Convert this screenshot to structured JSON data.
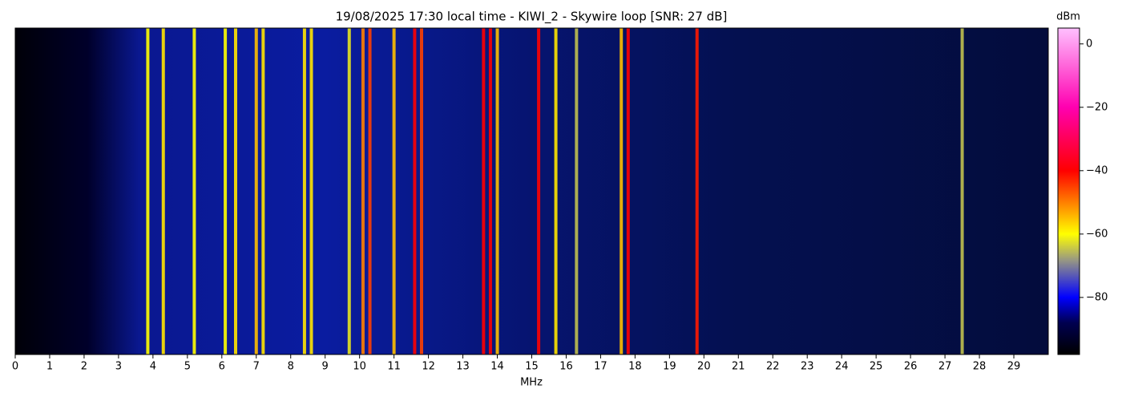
{
  "chart_data": {
    "type": "spectrogram",
    "title": "19/08/2025 17:30 local time - KIWI_2 - Skywire loop [SNR: 27 dB]",
    "xlabel": "MHz",
    "xlim": [
      0,
      30
    ],
    "xticks": [
      0,
      1,
      2,
      3,
      4,
      5,
      6,
      7,
      8,
      9,
      10,
      11,
      12,
      13,
      14,
      15,
      16,
      17,
      18,
      19,
      20,
      21,
      22,
      23,
      24,
      25,
      26,
      27,
      28,
      29
    ],
    "x": [
      3.85,
      4.3,
      5.2,
      6.1,
      6.4,
      7.0,
      7.2,
      8.4,
      8.6,
      9.7,
      10.1,
      10.3,
      11.0,
      11.6,
      11.8,
      13.6,
      13.8,
      14.0,
      15.2,
      15.7,
      16.3,
      17.6,
      17.8,
      19.8,
      27.5
    ],
    "values": [
      -60,
      -58,
      -60,
      -60,
      -58,
      -55,
      -58,
      -58,
      -58,
      -62,
      -50,
      -45,
      -55,
      -40,
      -45,
      -40,
      -40,
      -55,
      -40,
      -58,
      -65,
      -55,
      -40,
      -42,
      -65
    ],
    "colorbar_label": "dBm",
    "clim": [
      -98,
      5
    ],
    "colorbar_ticks": [
      0,
      {
        "value": -20,
        "label": "−20"
      },
      {
        "value": -40,
        "label": "−40"
      },
      {
        "value": -60,
        "label": "−60"
      },
      {
        "value": -80,
        "label": "−80"
      }
    ],
    "colorscale": [
      {
        "value": -98,
        "color": "#000000"
      },
      {
        "value": -88,
        "color": "#000050"
      },
      {
        "value": -80,
        "color": "#0000ff"
      },
      {
        "value": -68,
        "color": "#9a9a80"
      },
      {
        "value": -60,
        "color": "#ffff00"
      },
      {
        "value": -40,
        "color": "#ff0000"
      },
      {
        "value": -20,
        "color": "#ff00b0"
      },
      {
        "value": 5,
        "color": "#ffc0ff"
      }
    ]
  }
}
